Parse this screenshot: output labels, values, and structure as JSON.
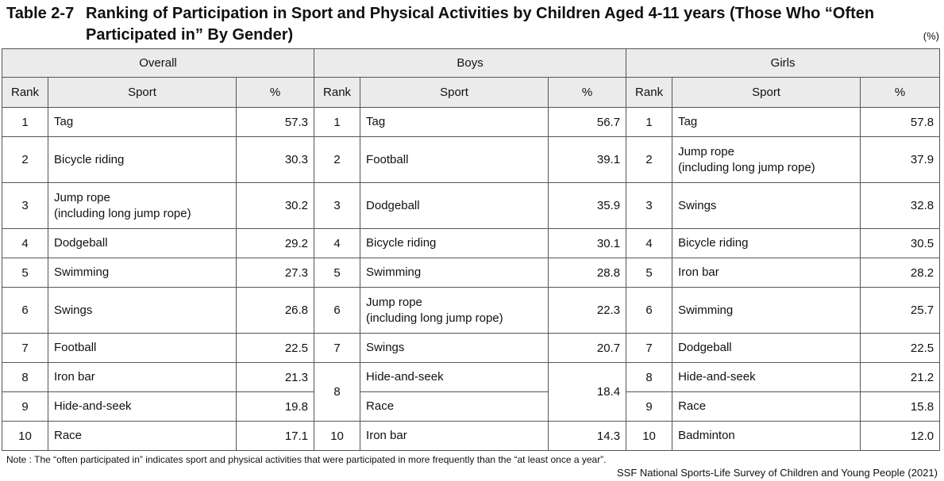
{
  "title": {
    "label": "Table 2-7",
    "line1": "Ranking of Participation in Sport and Physical Activities by Children Aged 4-11 years (Those Who “Often",
    "line2": "Participated in” By Gender)"
  },
  "unit": "(%)",
  "groups": {
    "overall": "Overall",
    "boys": "Boys",
    "girls": "Girls"
  },
  "columns": {
    "rank": "Rank",
    "sport": "Sport",
    "pct": "%"
  },
  "overall": [
    {
      "rank": "1",
      "sport": [
        "Tag"
      ],
      "pct": "57.3"
    },
    {
      "rank": "2",
      "sport": [
        "Bicycle riding"
      ],
      "pct": "30.3"
    },
    {
      "rank": "3",
      "sport": [
        "Jump rope",
        "(including long jump rope)"
      ],
      "pct": "30.2"
    },
    {
      "rank": "4",
      "sport": [
        "Dodgeball"
      ],
      "pct": "29.2"
    },
    {
      "rank": "5",
      "sport": [
        "Swimming"
      ],
      "pct": "27.3"
    },
    {
      "rank": "6",
      "sport": [
        "Swings"
      ],
      "pct": "26.8"
    },
    {
      "rank": "7",
      "sport": [
        "Football"
      ],
      "pct": "22.5"
    },
    {
      "rank": "8",
      "sport": [
        "Iron bar"
      ],
      "pct": "21.3"
    },
    {
      "rank": "9",
      "sport": [
        "Hide-and-seek"
      ],
      "pct": "19.8"
    },
    {
      "rank": "10",
      "sport": [
        "Race"
      ],
      "pct": "17.1"
    }
  ],
  "boys": [
    {
      "rank": "1",
      "sport": [
        "Tag"
      ],
      "pct": "56.7"
    },
    {
      "rank": "2",
      "sport": [
        "Football"
      ],
      "pct": "39.1"
    },
    {
      "rank": "3",
      "sport": [
        "Dodgeball"
      ],
      "pct": "35.9"
    },
    {
      "rank": "4",
      "sport": [
        "Bicycle riding"
      ],
      "pct": "30.1"
    },
    {
      "rank": "5",
      "sport": [
        "Swimming"
      ],
      "pct": "28.8"
    },
    {
      "rank": "6",
      "sport": [
        "Jump rope",
        "(including long jump rope)"
      ],
      "pct": "22.3"
    },
    {
      "rank": "7",
      "sport": [
        "Swings"
      ],
      "pct": "20.7"
    },
    {
      "rank": "8",
      "sport": [
        "Hide-and-seek"
      ],
      "pct": "18.4"
    },
    {
      "rank": "",
      "sport": [
        "Race"
      ],
      "pct": ""
    },
    {
      "rank": "10",
      "sport": [
        "Iron bar"
      ],
      "pct": "14.3"
    }
  ],
  "girls": [
    {
      "rank": "1",
      "sport": [
        "Tag"
      ],
      "pct": "57.8"
    },
    {
      "rank": "2",
      "sport": [
        "Jump rope",
        "(including long jump rope)"
      ],
      "pct": "37.9"
    },
    {
      "rank": "3",
      "sport": [
        "Swings"
      ],
      "pct": "32.8"
    },
    {
      "rank": "4",
      "sport": [
        "Bicycle riding"
      ],
      "pct": "30.5"
    },
    {
      "rank": "5",
      "sport": [
        "Iron bar"
      ],
      "pct": "28.2"
    },
    {
      "rank": "6",
      "sport": [
        "Swimming"
      ],
      "pct": "25.7"
    },
    {
      "rank": "7",
      "sport": [
        "Dodgeball"
      ],
      "pct": "22.5"
    },
    {
      "rank": "8",
      "sport": [
        "Hide-and-seek"
      ],
      "pct": "21.2"
    },
    {
      "rank": "9",
      "sport": [
        "Race"
      ],
      "pct": "15.8"
    },
    {
      "rank": "10",
      "sport": [
        "Badminton"
      ],
      "pct": "12.0"
    }
  ],
  "note": "Note : The “often participated in” indicates sport and physical activities that were participated in more frequently than the “at least once a year”.",
  "source": "SSF National Sports-Life Survey of Children and Young People (2021)"
}
